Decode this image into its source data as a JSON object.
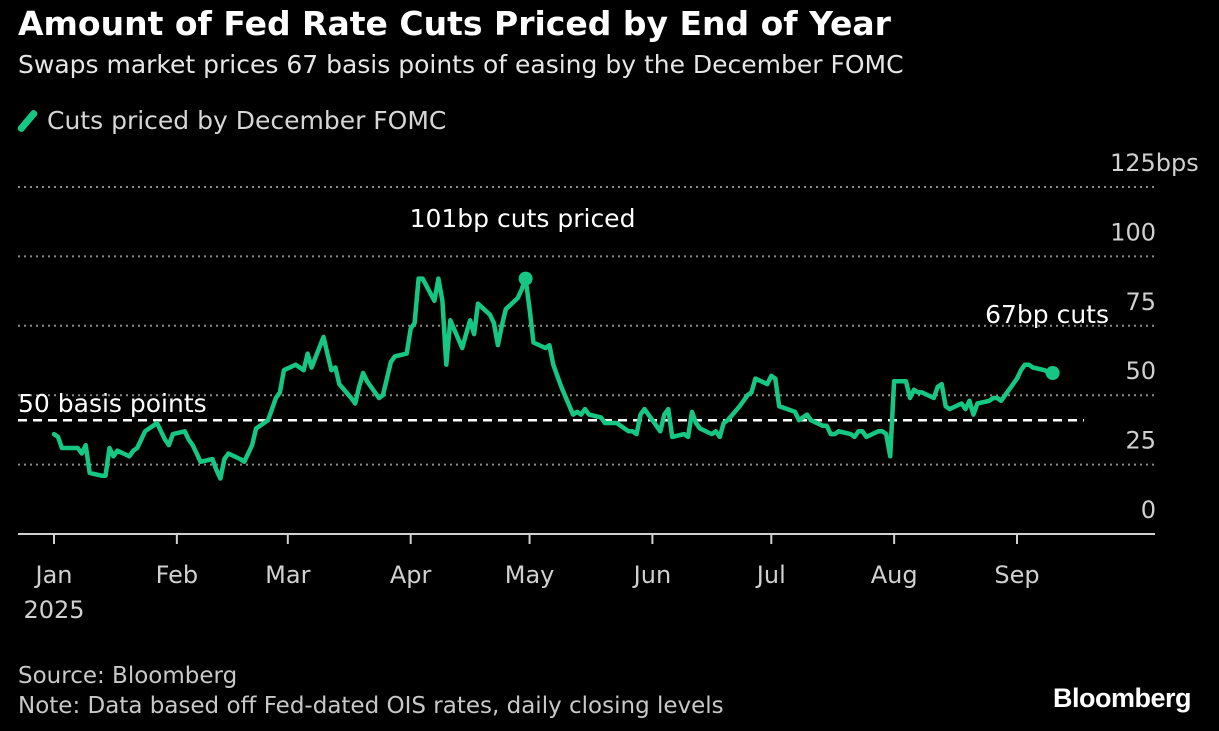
{
  "header": {
    "title": "Amount of Fed Rate Cuts Priced by End of Year",
    "subtitle": "Swaps market prices 67 basis points of easing by the December FOMC"
  },
  "legend": {
    "label": "Cuts priced by December FOMC",
    "color": "#16c784"
  },
  "footer": {
    "source": "Source: Bloomberg",
    "note": "Note: Data based off Fed-dated OIS rates, daily closing levels"
  },
  "logo": {
    "text": "Bloomberg"
  },
  "chart_data": {
    "type": "line",
    "title": "Amount of Fed Rate Cuts Priced by End of Year",
    "subtitle": "Swaps market prices 67 basis points of easing by the December FOMC",
    "ylim": [
      0,
      125
    ],
    "y_ticks": [
      0,
      25,
      50,
      75,
      100,
      125
    ],
    "y_tick_labels": [
      "0",
      "25",
      "50",
      "75",
      "100",
      "125bps"
    ],
    "x_ticks": [
      {
        "label": "Jan",
        "date": "2025-01-01"
      },
      {
        "label": "Feb",
        "date": "2025-02-01"
      },
      {
        "label": "Mar",
        "date": "2025-03-01"
      },
      {
        "label": "Apr",
        "date": "2025-04-01"
      },
      {
        "label": "May",
        "date": "2025-05-01"
      },
      {
        "label": "Jun",
        "date": "2025-06-01"
      },
      {
        "label": "Jul",
        "date": "2025-07-01"
      },
      {
        "label": "Aug",
        "date": "2025-08-01"
      },
      {
        "label": "Sep",
        "date": "2025-09-01"
      }
    ],
    "x_year_label": "2025",
    "grid": true,
    "reference_line": {
      "value": 50,
      "label": "50 basis points"
    },
    "annotations": [
      {
        "label": "101bp cuts priced",
        "date": "2025-04-30",
        "value": 101
      },
      {
        "label": "67bp cuts",
        "date": "2025-09-10",
        "value": 67
      }
    ],
    "series": [
      {
        "name": "Cuts priced by December FOMC",
        "color": "#16c784",
        "points": [
          [
            "2025-01-01",
            45
          ],
          [
            "2025-01-02",
            44
          ],
          [
            "2025-01-03",
            40
          ],
          [
            "2025-01-06",
            40
          ],
          [
            "2025-01-07",
            40
          ],
          [
            "2025-01-08",
            38
          ],
          [
            "2025-01-09",
            41
          ],
          [
            "2025-01-10",
            31
          ],
          [
            "2025-01-13",
            30
          ],
          [
            "2025-01-14",
            30
          ],
          [
            "2025-01-15",
            40
          ],
          [
            "2025-01-16",
            37
          ],
          [
            "2025-01-17",
            39
          ],
          [
            "2025-01-20",
            37
          ],
          [
            "2025-01-21",
            39
          ],
          [
            "2025-01-22",
            40
          ],
          [
            "2025-01-23",
            43
          ],
          [
            "2025-01-24",
            46
          ],
          [
            "2025-01-27",
            49
          ],
          [
            "2025-01-28",
            46
          ],
          [
            "2025-01-29",
            43
          ],
          [
            "2025-01-30",
            41
          ],
          [
            "2025-01-31",
            45
          ],
          [
            "2025-02-03",
            46
          ],
          [
            "2025-02-04",
            43
          ],
          [
            "2025-02-05",
            41
          ],
          [
            "2025-02-06",
            38
          ],
          [
            "2025-02-07",
            35
          ],
          [
            "2025-02-10",
            36
          ],
          [
            "2025-02-11",
            32
          ],
          [
            "2025-02-12",
            29
          ],
          [
            "2025-02-13",
            36
          ],
          [
            "2025-02-14",
            38
          ],
          [
            "2025-02-17",
            36
          ],
          [
            "2025-02-18",
            35
          ],
          [
            "2025-02-19",
            38
          ],
          [
            "2025-02-20",
            41
          ],
          [
            "2025-02-21",
            47
          ],
          [
            "2025-02-24",
            50
          ],
          [
            "2025-02-25",
            54
          ],
          [
            "2025-02-26",
            58
          ],
          [
            "2025-02-27",
            60
          ],
          [
            "2025-02-28",
            68
          ],
          [
            "2025-03-03",
            70
          ],
          [
            "2025-03-04",
            69
          ],
          [
            "2025-03-05",
            68
          ],
          [
            "2025-03-06",
            74
          ],
          [
            "2025-03-07",
            69
          ],
          [
            "2025-03-10",
            80
          ],
          [
            "2025-03-11",
            74
          ],
          [
            "2025-03-12",
            68
          ],
          [
            "2025-03-13",
            69
          ],
          [
            "2025-03-14",
            63
          ],
          [
            "2025-03-17",
            58
          ],
          [
            "2025-03-18",
            56
          ],
          [
            "2025-03-19",
            62
          ],
          [
            "2025-03-20",
            67
          ],
          [
            "2025-03-21",
            64
          ],
          [
            "2025-03-24",
            58
          ],
          [
            "2025-03-25",
            59
          ],
          [
            "2025-03-26",
            65
          ],
          [
            "2025-03-27",
            71
          ],
          [
            "2025-03-28",
            73
          ],
          [
            "2025-03-31",
            74
          ],
          [
            "2025-04-01",
            83
          ],
          [
            "2025-04-02",
            85
          ],
          [
            "2025-04-03",
            101
          ],
          [
            "2025-04-04",
            101
          ],
          [
            "2025-04-07",
            93
          ],
          [
            "2025-04-08",
            101
          ],
          [
            "2025-04-09",
            93
          ],
          [
            "2025-04-10",
            70
          ],
          [
            "2025-04-11",
            86
          ],
          [
            "2025-04-14",
            76
          ],
          [
            "2025-04-15",
            81
          ],
          [
            "2025-04-16",
            86
          ],
          [
            "2025-04-17",
            81
          ],
          [
            "2025-04-18",
            92
          ],
          [
            "2025-04-21",
            88
          ],
          [
            "2025-04-22",
            85
          ],
          [
            "2025-04-23",
            77
          ],
          [
            "2025-04-24",
            84
          ],
          [
            "2025-04-25",
            90
          ],
          [
            "2025-04-28",
            94
          ],
          [
            "2025-04-29",
            97
          ],
          [
            "2025-04-30",
            101
          ],
          [
            "2025-05-01",
            90
          ],
          [
            "2025-05-02",
            78
          ],
          [
            "2025-05-05",
            76
          ],
          [
            "2025-05-06",
            77
          ],
          [
            "2025-05-07",
            70
          ],
          [
            "2025-05-08",
            66
          ],
          [
            "2025-05-09",
            62
          ],
          [
            "2025-05-12",
            52
          ],
          [
            "2025-05-13",
            53
          ],
          [
            "2025-05-14",
            52
          ],
          [
            "2025-05-15",
            54
          ],
          [
            "2025-05-16",
            52
          ],
          [
            "2025-05-19",
            51
          ],
          [
            "2025-05-20",
            49
          ],
          [
            "2025-05-21",
            49
          ],
          [
            "2025-05-22",
            49
          ],
          [
            "2025-05-23",
            49
          ],
          [
            "2025-05-26",
            46
          ],
          [
            "2025-05-27",
            46
          ],
          [
            "2025-05-28",
            45
          ],
          [
            "2025-05-29",
            52
          ],
          [
            "2025-05-30",
            54
          ],
          [
            "2025-06-02",
            48
          ],
          [
            "2025-06-03",
            46
          ],
          [
            "2025-06-04",
            52
          ],
          [
            "2025-06-05",
            54
          ],
          [
            "2025-06-06",
            44
          ],
          [
            "2025-06-09",
            45
          ],
          [
            "2025-06-10",
            44
          ],
          [
            "2025-06-11",
            53
          ],
          [
            "2025-06-12",
            49
          ],
          [
            "2025-06-13",
            47
          ],
          [
            "2025-06-16",
            45
          ],
          [
            "2025-06-17",
            46
          ],
          [
            "2025-06-18",
            44
          ],
          [
            "2025-06-19",
            49
          ],
          [
            "2025-06-20",
            50
          ],
          [
            "2025-06-23",
            55
          ],
          [
            "2025-06-24",
            57
          ],
          [
            "2025-06-25",
            59
          ],
          [
            "2025-06-26",
            60
          ],
          [
            "2025-06-27",
            65
          ],
          [
            "2025-06-30",
            63
          ],
          [
            "2025-07-01",
            66
          ],
          [
            "2025-07-02",
            65
          ],
          [
            "2025-07-03",
            55
          ],
          [
            "2025-07-07",
            53
          ],
          [
            "2025-07-08",
            50
          ],
          [
            "2025-07-09",
            51
          ],
          [
            "2025-07-10",
            52
          ],
          [
            "2025-07-11",
            50
          ],
          [
            "2025-07-14",
            48
          ],
          [
            "2025-07-15",
            48
          ],
          [
            "2025-07-16",
            45
          ],
          [
            "2025-07-17",
            45
          ],
          [
            "2025-07-18",
            46
          ],
          [
            "2025-07-21",
            45
          ],
          [
            "2025-07-22",
            44
          ],
          [
            "2025-07-23",
            46
          ],
          [
            "2025-07-24",
            46
          ],
          [
            "2025-07-25",
            44
          ],
          [
            "2025-07-28",
            46
          ],
          [
            "2025-07-29",
            46
          ],
          [
            "2025-07-30",
            45
          ],
          [
            "2025-07-31",
            37
          ],
          [
            "2025-08-01",
            64
          ],
          [
            "2025-08-04",
            64
          ],
          [
            "2025-08-05",
            58
          ],
          [
            "2025-08-06",
            61
          ],
          [
            "2025-08-07",
            60
          ],
          [
            "2025-08-08",
            60
          ],
          [
            "2025-08-11",
            58
          ],
          [
            "2025-08-12",
            62
          ],
          [
            "2025-08-13",
            63
          ],
          [
            "2025-08-14",
            55
          ],
          [
            "2025-08-15",
            54
          ],
          [
            "2025-08-18",
            56
          ],
          [
            "2025-08-19",
            54
          ],
          [
            "2025-08-20",
            57
          ],
          [
            "2025-08-21",
            52
          ],
          [
            "2025-08-22",
            56
          ],
          [
            "2025-08-25",
            57
          ],
          [
            "2025-08-26",
            58
          ],
          [
            "2025-08-27",
            58
          ],
          [
            "2025-08-28",
            57
          ],
          [
            "2025-08-29",
            59
          ],
          [
            "2025-09-01",
            65
          ],
          [
            "2025-09-02",
            68
          ],
          [
            "2025-09-03",
            70
          ],
          [
            "2025-09-04",
            70
          ],
          [
            "2025-09-05",
            69
          ],
          [
            "2025-09-08",
            68
          ],
          [
            "2025-09-09",
            67
          ],
          [
            "2025-09-10",
            67
          ]
        ]
      }
    ]
  }
}
